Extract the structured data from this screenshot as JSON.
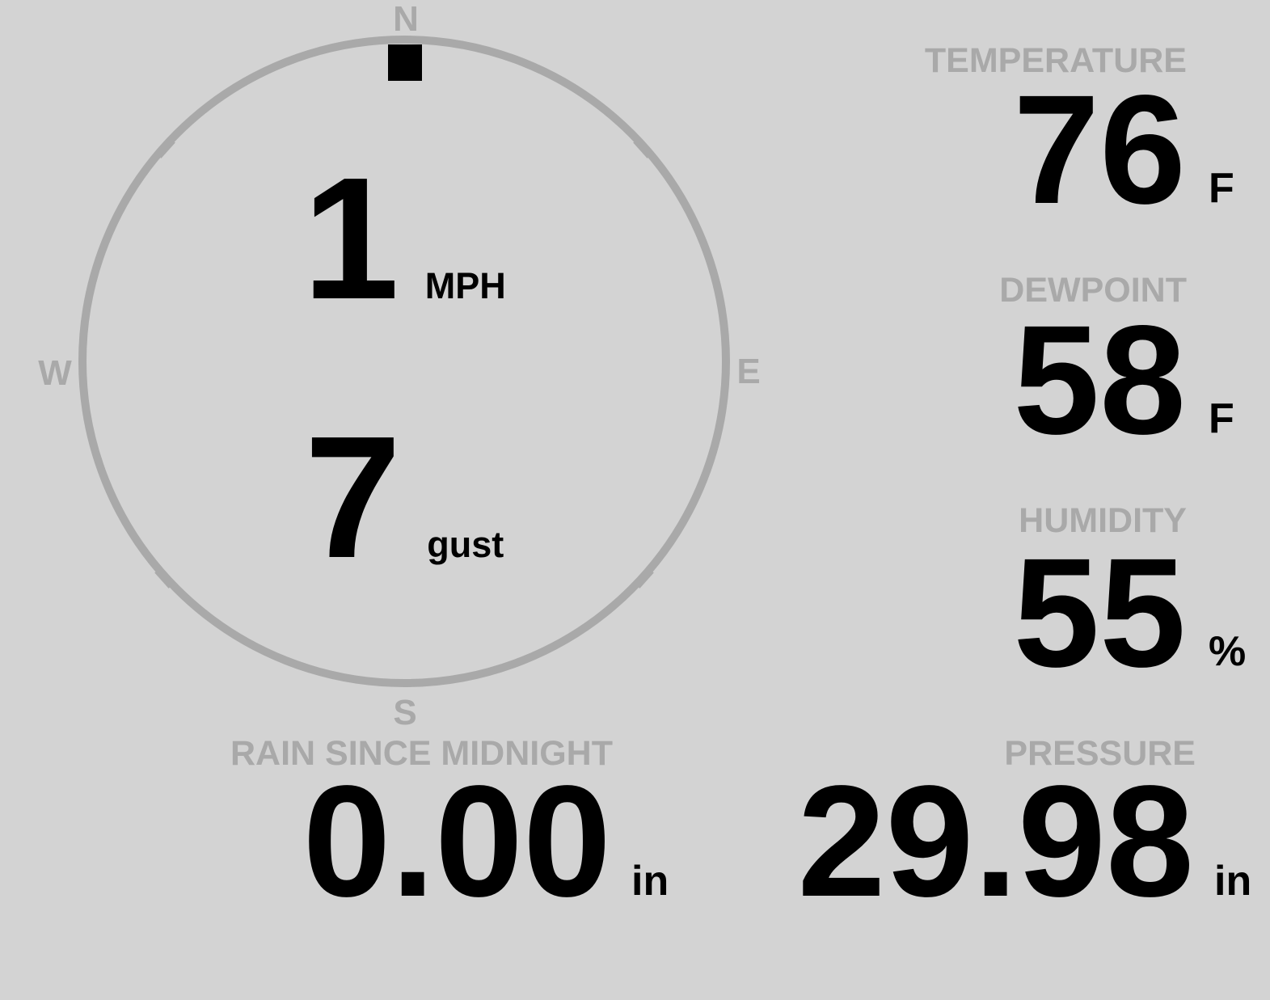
{
  "theme": {
    "background": "#d3d3d3",
    "muted_gray": "#a9a9a9",
    "value_black": "#000000"
  },
  "compass": {
    "cardinals": {
      "n": "N",
      "e": "E",
      "s": "S",
      "w": "W"
    },
    "wind_direction": "N",
    "speed": {
      "value": "1",
      "unit": "MPH"
    },
    "gust": {
      "value": "7",
      "unit": "gust"
    }
  },
  "metrics": {
    "temperature": {
      "label": "TEMPERATURE",
      "value": "76",
      "unit": "F"
    },
    "dewpoint": {
      "label": "DEWPOINT",
      "value": "58",
      "unit": "F"
    },
    "humidity": {
      "label": "HUMIDITY",
      "value": "55",
      "unit": "%"
    },
    "rain_since_midnight": {
      "label": "RAIN SINCE MIDNIGHT",
      "value": "0.00",
      "unit": "in"
    },
    "pressure": {
      "label": "PRESSURE",
      "value": "29.98",
      "unit": "in"
    }
  }
}
